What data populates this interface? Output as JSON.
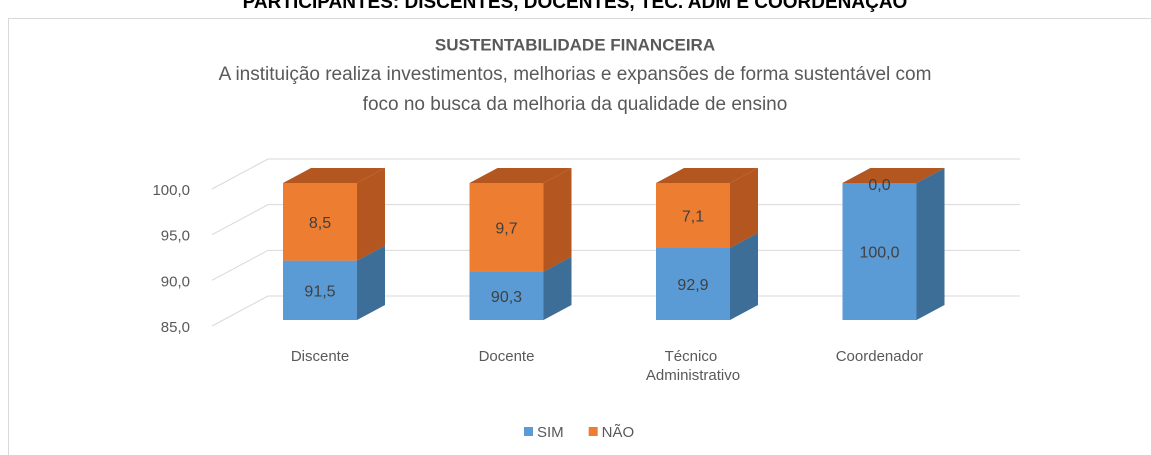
{
  "heading": "PARTICIPANTES: DISCENTES, DOCENTES, TEC. ADM E COORDENAÇÃO",
  "chart_data": {
    "type": "bar3d_stacked",
    "title": "SUSTENTABILIDADE FINANCEIRA",
    "subtitle": [
      "A instituição realiza investimentos, melhorias e expansões de forma sustentável com",
      "foco no busca da melhoria da qualidade de ensino"
    ],
    "categories": [
      "Discente",
      "Docente",
      "Técnico Administrativo",
      "Coordenador"
    ],
    "series": [
      {
        "name": "SIM",
        "color": "#5b9bd5",
        "side": "#3d6e98",
        "values": [
          91.5,
          90.3,
          92.9,
          100.0
        ],
        "value_labels": [
          "91,5",
          "90,3",
          "92,9",
          "100,0"
        ]
      },
      {
        "name": "NÃO",
        "color": "#ed7d31",
        "side": "#b4561f",
        "values": [
          8.5,
          9.7,
          7.1,
          0.0
        ],
        "value_labels": [
          "8,5",
          "9,7",
          "7,1",
          "0,0"
        ]
      }
    ],
    "ylim": [
      85,
      100
    ],
    "yticks": [
      {
        "value": 85,
        "label": "85,0"
      },
      {
        "value": 90,
        "label": "90,0"
      },
      {
        "value": 95,
        "label": "95,0"
      },
      {
        "value": 100,
        "label": "100,0"
      }
    ],
    "grid": true,
    "legend": "bottom"
  }
}
